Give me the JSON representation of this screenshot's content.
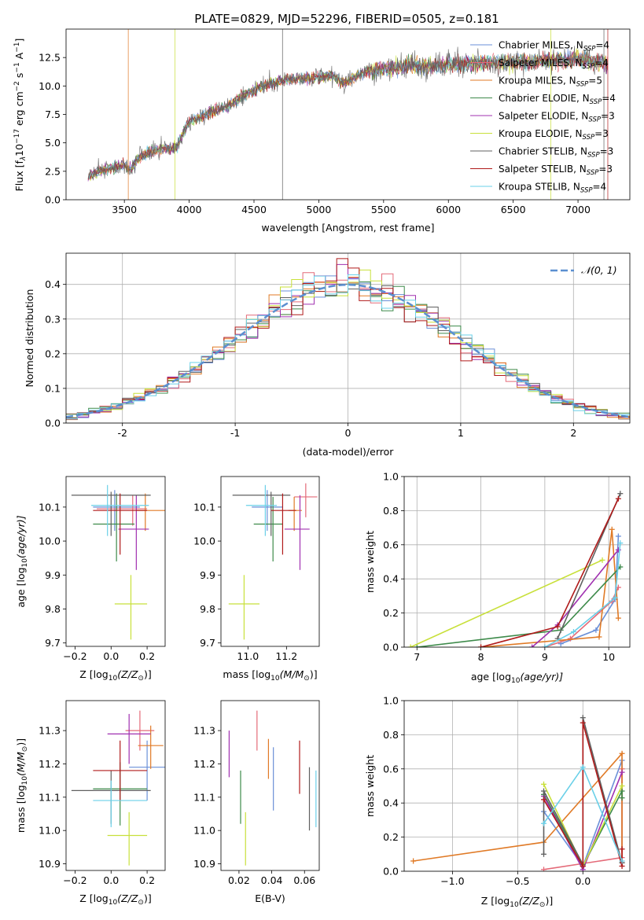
{
  "figure_title": "PLATE=0829, MJD=52296, FIBERID=0505, z=0.181",
  "colors": [
    "#6a8fd8",
    "#e46a78",
    "#e07a26",
    "#3d8a4a",
    "#a030b0",
    "#c8e03a",
    "#606060",
    "#b01a1a",
    "#6ad0e8"
  ],
  "chart_data": [
    {
      "id": "spectrum",
      "type": "line",
      "title": "PLATE=0829, MJD=52296, FIBERID=0505, z=0.181",
      "xlabel": "wavelength [Angstrom, rest frame]",
      "ylabel": "Flux [f$_\\lambda$10$^{-17}$ erg cm$^{-2}$ s$^{-1}$ A$^{-1}$]",
      "ylabel_parts": [
        "Flux [f",
        "λ",
        "10",
        "−17",
        " erg cm",
        "−2",
        " s",
        "−1",
        " A",
        "−1",
        "]"
      ],
      "xlim": [
        3050,
        7400
      ],
      "ylim": [
        0,
        15
      ],
      "xticks": [
        3500,
        4000,
        4500,
        5000,
        5500,
        6000,
        6500,
        7000
      ],
      "yticks": [
        0.0,
        2.5,
        5.0,
        7.5,
        10.0,
        12.5
      ],
      "grid": false,
      "legend_position": "top-right",
      "series": [
        {
          "name": "Chabrier MILES, N",
          "sub": "SSP",
          "suffix": "=4"
        },
        {
          "name": "Salpeter MILES, N",
          "sub": "SSP",
          "suffix": "=4"
        },
        {
          "name": "Kroupa MILES, N",
          "sub": "SSP",
          "suffix": "=5"
        },
        {
          "name": "Chabrier ELODIE, N",
          "sub": "SSP",
          "suffix": "=4"
        },
        {
          "name": "Salpeter ELODIE, N",
          "sub": "SSP",
          "suffix": "=3"
        },
        {
          "name": "Kroupa ELODIE, N",
          "sub": "SSP",
          "suffix": "=3"
        },
        {
          "name": "Chabrier STELIB, N",
          "sub": "SSP",
          "suffix": "=3"
        },
        {
          "name": "Salpeter STELIB, N",
          "sub": "SSP",
          "suffix": "=3"
        },
        {
          "name": "Kroupa STELIB, N",
          "sub": "SSP",
          "suffix": "=4"
        }
      ],
      "continuum": {
        "x": [
          3220,
          3300,
          3400,
          3500,
          3550,
          3600,
          3700,
          3800,
          3900,
          3950,
          4000,
          4100,
          4200,
          4300,
          4400,
          4500,
          4600,
          4700,
          4800,
          4900,
          5000,
          5100,
          5200,
          5300,
          5400,
          5500,
          5600,
          5700,
          5800,
          5900,
          6000,
          6200,
          6400,
          6600,
          6800,
          7000,
          7200
        ],
        "y": [
          2.0,
          2.5,
          2.8,
          3.0,
          2.6,
          3.6,
          4.2,
          4.5,
          4.6,
          5.8,
          6.8,
          7.3,
          7.9,
          8.2,
          9.0,
          9.6,
          10.1,
          10.4,
          10.6,
          10.6,
          10.8,
          10.9,
          10.2,
          11.0,
          11.3,
          11.5,
          11.6,
          11.9,
          11.7,
          11.7,
          11.9,
          12.0,
          12.1,
          12.1,
          12.2,
          12.3,
          12.0
        ]
      }
    },
    {
      "id": "residual_hist",
      "type": "bar",
      "xlabel": "(data-model)/error",
      "ylabel": "Normed distribution",
      "xlim": [
        -2.5,
        2.5
      ],
      "ylim": [
        0,
        0.49
      ],
      "xticks": [
        -2,
        -1,
        0,
        1,
        2
      ],
      "yticks": [
        0.0,
        0.1,
        0.2,
        0.3,
        0.4
      ],
      "grid": true,
      "legend_position": "top-right",
      "legend_label": "𝒩(0, 1)",
      "bin_width": 0.1
    },
    {
      "id": "age_vs_Z",
      "type": "scatter",
      "xlabel_parts": [
        "Z [log",
        "10",
        "(Z/Z",
        "⊙",
        ")]"
      ],
      "ylabel_parts": [
        "age  [log",
        "10",
        "(age/yr)]"
      ],
      "xlim": [
        -0.25,
        0.3
      ],
      "ylim": [
        9.69,
        10.19
      ],
      "xticks": [
        -0.2,
        0.0,
        0.2
      ],
      "xticklabels": [
        "−0.2",
        "0.0",
        "0.2"
      ],
      "yticks": [
        9.7,
        9.8,
        9.9,
        10.0,
        10.1
      ],
      "points": [
        {
          "x": 0.02,
          "y": 10.1,
          "xerr": [
            0.12,
            0.14
          ],
          "yerr": [
            0.07,
            0.05
          ]
        },
        {
          "x": 0.12,
          "y": 10.095,
          "xerr": [
            0.2,
            0.08
          ],
          "yerr": [
            0.05,
            0.04
          ]
        },
        {
          "x": 0.19,
          "y": 10.09,
          "xerr": [
            0.05,
            0.11
          ],
          "yerr": [
            0.06,
            0.05
          ]
        },
        {
          "x": 0.03,
          "y": 10.05,
          "xerr": [
            0.13,
            0.1
          ],
          "yerr": [
            0.11,
            0.09
          ]
        },
        {
          "x": 0.14,
          "y": 10.035,
          "xerr": [
            0.1,
            0.07
          ],
          "yerr": [
            0.12,
            0.1
          ]
        },
        {
          "x": 0.11,
          "y": 9.815,
          "xerr": [
            0.09,
            0.09
          ],
          "yerr": [
            0.105,
            0.085
          ]
        },
        {
          "x": 0.0,
          "y": 10.135,
          "xerr": [
            0.22,
            0.22
          ],
          "yerr": [
            0.12,
            0.01
          ]
        },
        {
          "x": 0.05,
          "y": 10.09,
          "xerr": [
            0.15,
            0.15
          ],
          "yerr": [
            0.13,
            0.05
          ]
        },
        {
          "x": -0.02,
          "y": 10.105,
          "xerr": [
            0.09,
            0.23
          ],
          "yerr": [
            0.09,
            0.06
          ]
        }
      ]
    },
    {
      "id": "age_vs_mass",
      "type": "scatter",
      "xlabel_parts": [
        "mass [log",
        "10",
        "(M/M",
        "⊙",
        ")]"
      ],
      "xlim": [
        10.86,
        11.37
      ],
      "ylim": [
        9.69,
        10.19
      ],
      "xticks": [
        11.0,
        11.2
      ],
      "xticklabels": [
        "11.0",
        "11.2"
      ],
      "yticks": [
        9.7,
        9.8,
        9.9,
        10.0,
        10.1
      ],
      "points": [
        {
          "x": 11.1,
          "y": 10.1,
          "xerr": [
            0.08,
            0.08
          ],
          "yerr": [
            0.07,
            0.05
          ]
        },
        {
          "x": 11.3,
          "y": 10.13,
          "xerr": [
            0.06,
            0.06
          ],
          "yerr": [
            0.06,
            0.04
          ]
        },
        {
          "x": 11.24,
          "y": 10.09,
          "xerr": [
            0.03,
            0.04
          ],
          "yerr": [
            0.06,
            0.04
          ]
        },
        {
          "x": 11.13,
          "y": 10.05,
          "xerr": [
            0.1,
            0.05
          ],
          "yerr": [
            0.11,
            0.08
          ]
        },
        {
          "x": 11.27,
          "y": 10.035,
          "xerr": [
            0.08,
            0.05
          ],
          "yerr": [
            0.12,
            0.1
          ]
        },
        {
          "x": 10.98,
          "y": 9.815,
          "xerr": [
            0.08,
            0.08
          ],
          "yerr": [
            0.105,
            0.085
          ]
        },
        {
          "x": 11.12,
          "y": 10.135,
          "xerr": [
            0.2,
            0.1
          ],
          "yerr": [
            0.12,
            0.01
          ]
        },
        {
          "x": 11.18,
          "y": 10.09,
          "xerr": [
            0.06,
            0.07
          ],
          "yerr": [
            0.13,
            0.05
          ]
        },
        {
          "x": 11.09,
          "y": 10.105,
          "xerr": [
            0.1,
            0.06
          ],
          "yerr": [
            0.09,
            0.06
          ]
        }
      ]
    },
    {
      "id": "weight_vs_age",
      "type": "line",
      "xlabel_parts": [
        "age  [log",
        "10",
        "(age/yr)]"
      ],
      "ylabel": "mass weight",
      "xlim": [
        6.8,
        10.33
      ],
      "ylim": [
        0,
        1
      ],
      "xticks": [
        7,
        8,
        9,
        10
      ],
      "yticks": [
        0.0,
        0.2,
        0.4,
        0.6,
        0.8,
        1.0
      ],
      "grid": true,
      "series": [
        {
          "x": [
            9.25,
            9.8,
            10.1,
            10.15
          ],
          "y": [
            0.02,
            0.1,
            0.28,
            0.65
          ]
        },
        {
          "x": [
            9.0,
            9.4,
            10.05,
            10.15
          ],
          "y": [
            0.0,
            0.05,
            0.27,
            0.35
          ]
        },
        {
          "x": [
            8.0,
            9.85,
            10.05,
            10.15
          ],
          "y": [
            0.0,
            0.06,
            0.69,
            0.17
          ]
        },
        {
          "x": [
            7.0,
            9.25,
            10.18
          ],
          "y": [
            0.0,
            0.1,
            0.47
          ]
        },
        {
          "x": [
            8.8,
            9.2,
            10.15
          ],
          "y": [
            0.0,
            0.13,
            0.57
          ]
        },
        {
          "x": [
            6.9,
            9.9
          ],
          "y": [
            0.0,
            0.51
          ]
        },
        {
          "x": [
            9.2,
            10.18
          ],
          "y": [
            0.05,
            0.9
          ]
        },
        {
          "x": [
            8.0,
            9.2,
            10.15
          ],
          "y": [
            0.0,
            0.12,
            0.87
          ]
        },
        {
          "x": [
            9.0,
            9.45,
            10.1,
            10.18
          ],
          "y": [
            0.0,
            0.09,
            0.29,
            0.61
          ]
        }
      ]
    },
    {
      "id": "mass_vs_Z",
      "type": "scatter",
      "xlabel_parts": [
        "Z [log",
        "10",
        "(Z/Z",
        "⊙",
        ")]"
      ],
      "ylabel_parts": [
        "mass [log",
        "10",
        "(M/M",
        "⊙",
        ")]"
      ],
      "xlim": [
        -0.25,
        0.3
      ],
      "ylim": [
        10.88,
        11.39
      ],
      "xticks": [
        -0.2,
        0.0,
        0.2
      ],
      "xticklabels": [
        "−0.2",
        "0.0",
        "0.2"
      ],
      "yticks": [
        10.9,
        11.0,
        11.1,
        11.2,
        11.3
      ],
      "points": [
        {
          "x": 0.2,
          "y": 11.19,
          "xerr": [
            0.1,
            0.1
          ],
          "yerr": [
            0.1,
            0.08
          ]
        },
        {
          "x": 0.16,
          "y": 11.3,
          "xerr": [
            0.08,
            0.08
          ],
          "yerr": [
            0.06,
            0.06
          ]
        },
        {
          "x": 0.22,
          "y": 11.255,
          "xerr": [
            0.07,
            0.07
          ],
          "yerr": [
            0.07,
            0.06
          ]
        },
        {
          "x": 0.05,
          "y": 11.125,
          "xerr": [
            0.15,
            0.15
          ],
          "yerr": [
            0.11,
            0.08
          ]
        },
        {
          "x": 0.1,
          "y": 11.29,
          "xerr": [
            0.12,
            0.12
          ],
          "yerr": [
            0.09,
            0.06
          ]
        },
        {
          "x": 0.1,
          "y": 10.985,
          "xerr": [
            0.12,
            0.1
          ],
          "yerr": [
            0.09,
            0.07
          ]
        },
        {
          "x": 0.0,
          "y": 11.12,
          "xerr": [
            0.22,
            0.22
          ],
          "yerr": [
            0.1,
            0.06
          ]
        },
        {
          "x": 0.05,
          "y": 11.18,
          "xerr": [
            0.15,
            0.15
          ],
          "yerr": [
            0.09,
            0.09
          ]
        },
        {
          "x": 0.0,
          "y": 11.09,
          "xerr": [
            0.1,
            0.2
          ],
          "yerr": [
            0.08,
            0.06
          ]
        }
      ]
    },
    {
      "id": "mass_vs_ebv",
      "type": "scatter",
      "xlabel": "E(B-V)",
      "xlim": [
        0.009,
        0.069
      ],
      "ylim": [
        10.88,
        11.39
      ],
      "xticks": [
        0.02,
        0.04,
        0.06
      ],
      "xticklabels": [
        "0.02",
        "0.04",
        "0.06"
      ],
      "yticks": [
        10.9,
        11.0,
        11.1,
        11.2,
        11.3
      ],
      "points": [
        {
          "x": 0.041,
          "y": 11.16,
          "xerr": [
            0,
            0
          ],
          "yerr": [
            0.1,
            0.09
          ]
        },
        {
          "x": 0.031,
          "y": 11.3,
          "xerr": [
            0,
            0
          ],
          "yerr": [
            0.06,
            0.06
          ]
        },
        {
          "x": 0.038,
          "y": 11.215,
          "xerr": [
            0,
            0
          ],
          "yerr": [
            0.06,
            0.06
          ]
        },
        {
          "x": 0.021,
          "y": 11.1,
          "xerr": [
            0,
            0
          ],
          "yerr": [
            0.08,
            0.08
          ]
        },
        {
          "x": 0.014,
          "y": 11.23,
          "xerr": [
            0,
            0
          ],
          "yerr": [
            0.07,
            0.07
          ]
        },
        {
          "x": 0.024,
          "y": 10.975,
          "xerr": [
            0,
            0
          ],
          "yerr": [
            0.08,
            0.08
          ]
        },
        {
          "x": 0.063,
          "y": 11.1,
          "xerr": [
            0,
            0
          ],
          "yerr": [
            0.1,
            0.09
          ]
        },
        {
          "x": 0.057,
          "y": 11.19,
          "xerr": [
            0,
            0
          ],
          "yerr": [
            0.08,
            0.08
          ]
        },
        {
          "x": 0.067,
          "y": 11.1,
          "xerr": [
            0,
            0
          ],
          "yerr": [
            0.09,
            0.08
          ]
        }
      ]
    },
    {
      "id": "weight_vs_Z",
      "type": "line",
      "xlabel_parts": [
        "Z [log",
        "10",
        "(Z/Z",
        "⊙",
        ")]"
      ],
      "ylabel": "mass weight",
      "xlim": [
        -1.37,
        0.36
      ],
      "ylim": [
        0,
        1
      ],
      "xticks": [
        -1.0,
        -0.5,
        0.0
      ],
      "xticklabels": [
        "−1.0",
        "−0.5",
        "0.0"
      ],
      "yticks": [
        0.0,
        0.2,
        0.4,
        0.6,
        0.8,
        1.0
      ],
      "grid": true,
      "series": [
        {
          "x": [
            -0.3,
            0.0,
            0.3,
            0.3
          ],
          "y": [
            0.35,
            0.03,
            0.65,
            0.05
          ]
        },
        {
          "x": [
            -0.3,
            0.3,
            0.3
          ],
          "y": [
            0.01,
            0.08,
            0.6
          ]
        },
        {
          "x": [
            -1.3,
            -0.3,
            0.3,
            0.3
          ],
          "y": [
            0.06,
            0.17,
            0.69,
            0.05
          ]
        },
        {
          "x": [
            -0.3,
            0.0,
            0.3,
            0.3
          ],
          "y": [
            0.45,
            0.03,
            0.47,
            0.43
          ]
        },
        {
          "x": [
            -0.3,
            0.0,
            0.3
          ],
          "y": [
            0.44,
            0.01,
            0.58
          ]
        },
        {
          "x": [
            -0.3,
            0.0,
            0.3
          ],
          "y": [
            0.51,
            0.03,
            0.5
          ]
        },
        {
          "x": [
            -0.3,
            -0.3,
            0.0,
            0.0,
            0.3,
            0.3
          ],
          "y": [
            0.1,
            0.47,
            0.04,
            0.9,
            0.05,
            0.05
          ]
        },
        {
          "x": [
            -0.3,
            0.0,
            0.0,
            0.3,
            0.3
          ],
          "y": [
            0.42,
            0.03,
            0.87,
            0.03,
            0.13
          ]
        },
        {
          "x": [
            -0.3,
            0.0,
            0.3
          ],
          "y": [
            0.28,
            0.61,
            0.06
          ]
        }
      ]
    }
  ]
}
